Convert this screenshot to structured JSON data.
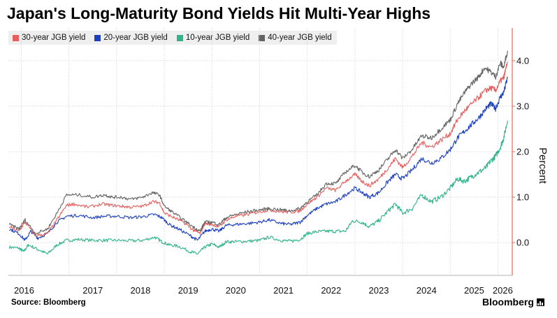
{
  "title": "Japan's Long-Maturity Bond Yields Hit Multi-Year Highs",
  "source": "Source: Bloomberg",
  "brand": "Bloomberg",
  "colors": {
    "jgb30": "#e8605e",
    "jgb20": "#1c3fbf",
    "jgb10": "#2fb38a",
    "jgb40": "#636363",
    "axis": "#e26b5a",
    "grid": "#cfcfcf"
  },
  "chart_data": {
    "type": "line",
    "title": "Japan's Long-Maturity Bond Yields Hit Multi-Year Highs",
    "xlabel": "",
    "ylabel": "Percent",
    "xlim": [
      2015.73,
      2026.3
    ],
    "ylim": [
      -0.72,
      4.72
    ],
    "y_ticks": [
      "0.0",
      "1.0",
      "2.0",
      "3.0",
      "4.0"
    ],
    "x_ticks": [
      "2016",
      "2017",
      "2018",
      "2019",
      "2020",
      "2021",
      "2022",
      "2023",
      "2024",
      "2025",
      "2026"
    ],
    "grid": true,
    "y_axis_position": "right",
    "legend_position": "top-left",
    "series": [
      {
        "name": "30-year JGB yield",
        "color": "#e8605e",
        "points": [
          [
            2015.75,
            0.35
          ],
          [
            2015.95,
            0.25
          ],
          [
            2016.08,
            0.45
          ],
          [
            2016.3,
            0.15
          ],
          [
            2016.55,
            0.2
          ],
          [
            2016.75,
            0.5
          ],
          [
            2016.95,
            0.82
          ],
          [
            2017.1,
            0.85
          ],
          [
            2017.4,
            0.78
          ],
          [
            2017.7,
            0.85
          ],
          [
            2017.9,
            0.82
          ],
          [
            2018.1,
            0.8
          ],
          [
            2018.3,
            0.78
          ],
          [
            2018.55,
            0.8
          ],
          [
            2018.75,
            0.9
          ],
          [
            2018.9,
            0.88
          ],
          [
            2019.0,
            0.65
          ],
          [
            2019.2,
            0.55
          ],
          [
            2019.4,
            0.45
          ],
          [
            2019.6,
            0.28
          ],
          [
            2019.75,
            0.2
          ],
          [
            2019.85,
            0.42
          ],
          [
            2020.0,
            0.4
          ],
          [
            2020.15,
            0.35
          ],
          [
            2020.3,
            0.5
          ],
          [
            2020.5,
            0.58
          ],
          [
            2020.75,
            0.62
          ],
          [
            2021.0,
            0.68
          ],
          [
            2021.2,
            0.72
          ],
          [
            2021.45,
            0.68
          ],
          [
            2021.65,
            0.67
          ],
          [
            2021.85,
            0.7
          ],
          [
            2022.0,
            0.85
          ],
          [
            2022.2,
            1.0
          ],
          [
            2022.4,
            1.2
          ],
          [
            2022.6,
            1.15
          ],
          [
            2022.8,
            1.35
          ],
          [
            2023.0,
            1.5
          ],
          [
            2023.15,
            1.35
          ],
          [
            2023.3,
            1.25
          ],
          [
            2023.5,
            1.4
          ],
          [
            2023.7,
            1.65
          ],
          [
            2023.85,
            1.85
          ],
          [
            2024.0,
            1.65
          ],
          [
            2024.2,
            1.9
          ],
          [
            2024.4,
            2.2
          ],
          [
            2024.6,
            2.1
          ],
          [
            2024.8,
            2.25
          ],
          [
            2025.0,
            2.4
          ],
          [
            2025.15,
            2.7
          ],
          [
            2025.3,
            2.9
          ],
          [
            2025.45,
            3.05
          ],
          [
            2025.6,
            3.2
          ],
          [
            2025.75,
            3.35
          ],
          [
            2025.85,
            3.4
          ],
          [
            2025.95,
            3.35
          ],
          [
            2026.05,
            3.55
          ],
          [
            2026.12,
            3.62
          ],
          [
            2026.2,
            3.98
          ]
        ]
      },
      {
        "name": "20-year JGB yield",
        "color": "#1c3fbf",
        "points": [
          [
            2015.75,
            0.3
          ],
          [
            2015.95,
            0.2
          ],
          [
            2016.08,
            0.05
          ],
          [
            2016.2,
            0.25
          ],
          [
            2016.35,
            0.1
          ],
          [
            2016.55,
            0.2
          ],
          [
            2016.75,
            0.45
          ],
          [
            2016.95,
            0.58
          ],
          [
            2017.2,
            0.6
          ],
          [
            2017.5,
            0.55
          ],
          [
            2017.75,
            0.58
          ],
          [
            2018.0,
            0.58
          ],
          [
            2018.3,
            0.55
          ],
          [
            2018.55,
            0.57
          ],
          [
            2018.8,
            0.62
          ],
          [
            2018.95,
            0.55
          ],
          [
            2019.1,
            0.4
          ],
          [
            2019.3,
            0.3
          ],
          [
            2019.55,
            0.15
          ],
          [
            2019.7,
            0.05
          ],
          [
            2019.85,
            0.25
          ],
          [
            2020.0,
            0.3
          ],
          [
            2020.15,
            0.25
          ],
          [
            2020.3,
            0.38
          ],
          [
            2020.5,
            0.4
          ],
          [
            2020.75,
            0.42
          ],
          [
            2021.0,
            0.45
          ],
          [
            2021.2,
            0.5
          ],
          [
            2021.45,
            0.42
          ],
          [
            2021.65,
            0.4
          ],
          [
            2021.85,
            0.45
          ],
          [
            2022.0,
            0.6
          ],
          [
            2022.2,
            0.75
          ],
          [
            2022.4,
            0.85
          ],
          [
            2022.6,
            0.9
          ],
          [
            2022.8,
            1.05
          ],
          [
            2023.0,
            1.2
          ],
          [
            2023.15,
            1.1
          ],
          [
            2023.3,
            1.0
          ],
          [
            2023.5,
            1.1
          ],
          [
            2023.7,
            1.35
          ],
          [
            2023.85,
            1.5
          ],
          [
            2024.0,
            1.4
          ],
          [
            2024.2,
            1.6
          ],
          [
            2024.4,
            1.85
          ],
          [
            2024.6,
            1.75
          ],
          [
            2024.8,
            1.85
          ],
          [
            2025.0,
            2.05
          ],
          [
            2025.15,
            2.3
          ],
          [
            2025.3,
            2.45
          ],
          [
            2025.45,
            2.6
          ],
          [
            2025.6,
            2.75
          ],
          [
            2025.75,
            2.95
          ],
          [
            2025.85,
            3.05
          ],
          [
            2025.95,
            2.95
          ],
          [
            2026.05,
            3.2
          ],
          [
            2026.12,
            3.3
          ],
          [
            2026.2,
            3.62
          ]
        ]
      },
      {
        "name": "10-year JGB yield",
        "color": "#2fb38a",
        "points": [
          [
            2015.75,
            -0.1
          ],
          [
            2015.95,
            -0.12
          ],
          [
            2016.05,
            -0.2
          ],
          [
            2016.15,
            -0.05
          ],
          [
            2016.35,
            -0.15
          ],
          [
            2016.55,
            -0.25
          ],
          [
            2016.75,
            -0.05
          ],
          [
            2016.95,
            0.05
          ],
          [
            2017.2,
            0.07
          ],
          [
            2017.5,
            0.05
          ],
          [
            2017.75,
            0.05
          ],
          [
            2018.0,
            0.05
          ],
          [
            2018.3,
            0.04
          ],
          [
            2018.55,
            0.05
          ],
          [
            2018.8,
            0.12
          ],
          [
            2018.95,
            0.02
          ],
          [
            2019.1,
            -0.05
          ],
          [
            2019.3,
            -0.08
          ],
          [
            2019.55,
            -0.2
          ],
          [
            2019.7,
            -0.25
          ],
          [
            2019.85,
            -0.1
          ],
          [
            2020.0,
            -0.03
          ],
          [
            2020.15,
            -0.1
          ],
          [
            2020.3,
            0.02
          ],
          [
            2020.5,
            0.02
          ],
          [
            2020.75,
            0.03
          ],
          [
            2021.0,
            0.05
          ],
          [
            2021.2,
            0.12
          ],
          [
            2021.45,
            0.05
          ],
          [
            2021.65,
            0.03
          ],
          [
            2021.85,
            0.07
          ],
          [
            2022.0,
            0.2
          ],
          [
            2022.2,
            0.24
          ],
          [
            2022.4,
            0.25
          ],
          [
            2022.6,
            0.25
          ],
          [
            2022.8,
            0.25
          ],
          [
            2022.95,
            0.48
          ],
          [
            2023.15,
            0.45
          ],
          [
            2023.3,
            0.35
          ],
          [
            2023.5,
            0.48
          ],
          [
            2023.7,
            0.7
          ],
          [
            2023.85,
            0.85
          ],
          [
            2024.0,
            0.65
          ],
          [
            2024.2,
            0.75
          ],
          [
            2024.4,
            1.05
          ],
          [
            2024.6,
            0.9
          ],
          [
            2024.8,
            1.0
          ],
          [
            2025.0,
            1.2
          ],
          [
            2025.15,
            1.4
          ],
          [
            2025.3,
            1.35
          ],
          [
            2025.45,
            1.45
          ],
          [
            2025.6,
            1.55
          ],
          [
            2025.75,
            1.65
          ],
          [
            2025.85,
            1.8
          ],
          [
            2025.95,
            1.9
          ],
          [
            2026.05,
            2.1
          ],
          [
            2026.12,
            2.3
          ],
          [
            2026.2,
            2.68
          ]
        ]
      },
      {
        "name": "40-year JGB yield",
        "color": "#636363",
        "points": [
          [
            2015.75,
            0.4
          ],
          [
            2015.95,
            0.3
          ],
          [
            2016.08,
            0.5
          ],
          [
            2016.3,
            0.2
          ],
          [
            2016.55,
            0.3
          ],
          [
            2016.75,
            0.65
          ],
          [
            2016.95,
            1.05
          ],
          [
            2017.2,
            1.05
          ],
          [
            2017.5,
            1.0
          ],
          [
            2017.75,
            1.05
          ],
          [
            2017.9,
            1.0
          ],
          [
            2018.1,
            1.0
          ],
          [
            2018.3,
            0.95
          ],
          [
            2018.55,
            1.0
          ],
          [
            2018.75,
            1.1
          ],
          [
            2018.9,
            1.05
          ],
          [
            2019.0,
            0.8
          ],
          [
            2019.2,
            0.65
          ],
          [
            2019.4,
            0.5
          ],
          [
            2019.6,
            0.35
          ],
          [
            2019.75,
            0.25
          ],
          [
            2019.85,
            0.45
          ],
          [
            2020.0,
            0.45
          ],
          [
            2020.15,
            0.4
          ],
          [
            2020.3,
            0.55
          ],
          [
            2020.5,
            0.62
          ],
          [
            2020.75,
            0.68
          ],
          [
            2021.0,
            0.72
          ],
          [
            2021.2,
            0.75
          ],
          [
            2021.45,
            0.72
          ],
          [
            2021.65,
            0.7
          ],
          [
            2021.85,
            0.75
          ],
          [
            2022.0,
            0.9
          ],
          [
            2022.2,
            1.05
          ],
          [
            2022.4,
            1.3
          ],
          [
            2022.6,
            1.3
          ],
          [
            2022.8,
            1.55
          ],
          [
            2023.0,
            1.7
          ],
          [
            2023.15,
            1.55
          ],
          [
            2023.3,
            1.45
          ],
          [
            2023.5,
            1.6
          ],
          [
            2023.7,
            1.85
          ],
          [
            2023.85,
            2.05
          ],
          [
            2024.0,
            1.85
          ],
          [
            2024.2,
            2.05
          ],
          [
            2024.4,
            2.35
          ],
          [
            2024.6,
            2.3
          ],
          [
            2024.8,
            2.5
          ],
          [
            2025.0,
            2.7
          ],
          [
            2025.15,
            3.05
          ],
          [
            2025.3,
            3.3
          ],
          [
            2025.45,
            3.5
          ],
          [
            2025.6,
            3.65
          ],
          [
            2025.72,
            3.85
          ],
          [
            2025.85,
            3.75
          ],
          [
            2025.95,
            3.65
          ],
          [
            2026.05,
            3.95
          ],
          [
            2026.12,
            3.85
          ],
          [
            2026.2,
            4.22
          ]
        ]
      }
    ]
  }
}
